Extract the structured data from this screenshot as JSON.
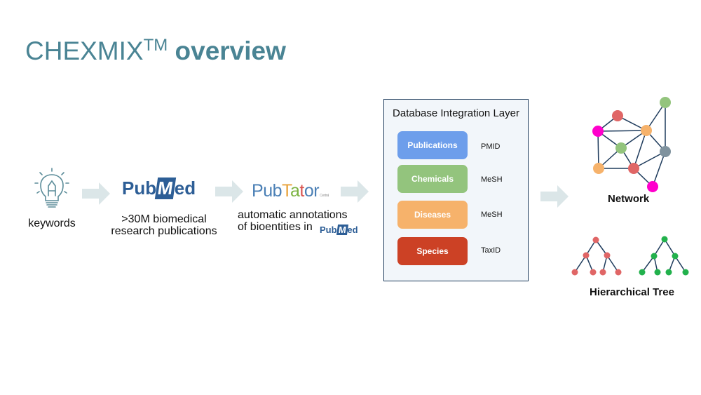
{
  "title": {
    "main": "CHEXMIX",
    "tm": "TM",
    "bold": "overview"
  },
  "steps": {
    "keywords": {
      "icon": "lightbulb-icon",
      "label": "keywords"
    },
    "pubmed": {
      "logo_pub": "Pub",
      "logo_m": "M",
      "logo_ed": "ed",
      "line1": ">30M biomedical",
      "line2": "research publications"
    },
    "pubtator": {
      "logo_letters": [
        "P",
        "u",
        "b",
        "T",
        "a",
        "t",
        "o",
        "r"
      ],
      "logo_colors": [
        "#4a7fb5",
        "#4a7fb5",
        "#4a7fb5",
        "#e8a33b",
        "#7cb342",
        "#d9534f",
        "#4a7fb5",
        "#4a7fb5"
      ],
      "logo_sub": "Central",
      "line1": "automatic annotations",
      "line2": "of bioentities in"
    }
  },
  "database": {
    "title": "Database Integration Layer",
    "rows": [
      {
        "label": "Publications",
        "code": "PMID",
        "color": "#6d9eeb"
      },
      {
        "label": "Chemicals",
        "code": "MeSH",
        "color": "#93c47d"
      },
      {
        "label": "Diseases",
        "code": "MeSH",
        "color": "#f6b26b"
      },
      {
        "label": "Species",
        "code": "TaxID",
        "color": "#cc4125"
      }
    ]
  },
  "outputs": {
    "network": "Network",
    "tree": "Hierarchical Tree"
  },
  "colors": {
    "title": "#4a8494",
    "arrow": "#dbe6e8",
    "pubmed_blue": "#2d5e96",
    "box_border": "#1e3b5c"
  }
}
